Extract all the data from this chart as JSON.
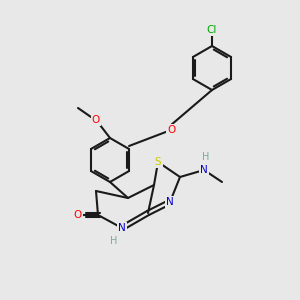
{
  "background_color": "#e8e8e8",
  "bond_color": "#1a1a1a",
  "atom_colors": {
    "O": "#ff0000",
    "N": "#0000cc",
    "S": "#cccc00",
    "Cl": "#00aa00",
    "C": "#1a1a1a",
    "H": "#7aaa99"
  },
  "figsize": [
    3.0,
    3.0
  ],
  "dpi": 100
}
